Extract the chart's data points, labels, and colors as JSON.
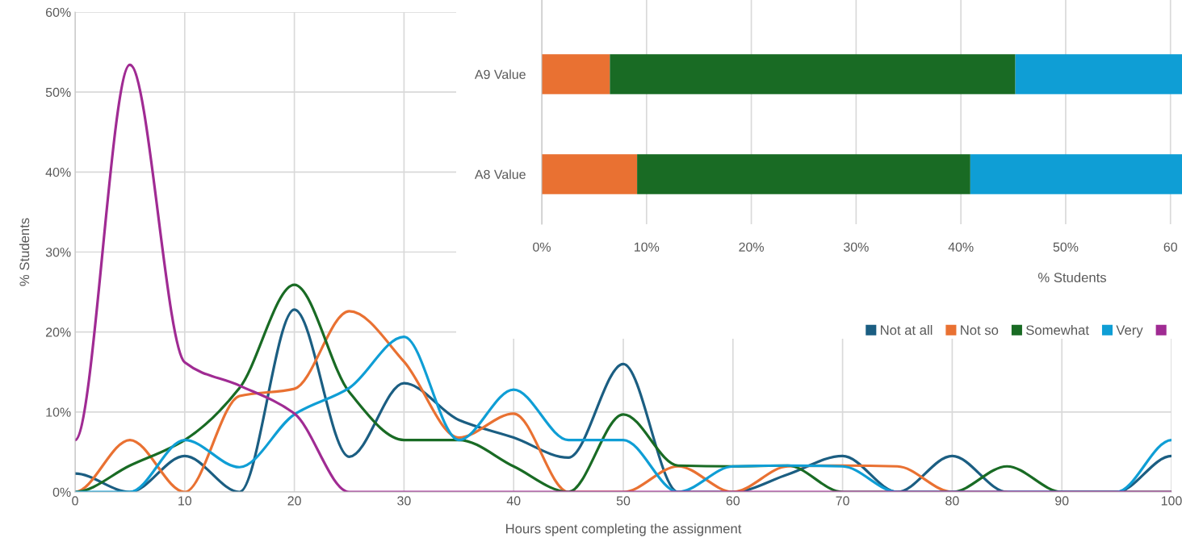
{
  "chart_data": [
    {
      "type": "line",
      "xlabel": "Hours spent completing the assignment",
      "ylabel": "% Students",
      "x": [
        0,
        5,
        10,
        15,
        20,
        25,
        30,
        35,
        40,
        45,
        50,
        55,
        60,
        65,
        70,
        75,
        80,
        85,
        90,
        95,
        100
      ],
      "series": [
        {
          "name": "Not at all",
          "color": "#1b5e82",
          "values": [
            2.3,
            0,
            4.5,
            0,
            22.8,
            4.4,
            13.6,
            9.0,
            6.8,
            4.3,
            16,
            0,
            0,
            2.2,
            4.5,
            0,
            4.5,
            0,
            0,
            0,
            4.5
          ]
        },
        {
          "name": "Not so",
          "color": "#e97132",
          "values": [
            0,
            6.5,
            0,
            12,
            12.9,
            22.6,
            16.3,
            6.8,
            9.8,
            0,
            0,
            3.2,
            0,
            3.2,
            3.3,
            3.2,
            0,
            0,
            null,
            null,
            null
          ]
        },
        {
          "name": "Somewhat",
          "color": "#196b24",
          "values": [
            0,
            3.3,
            6.5,
            13,
            25.9,
            12.5,
            6.5,
            6.5,
            3.2,
            0,
            9.7,
            3.3,
            3.2,
            3.3,
            0,
            0,
            0,
            3.2,
            0,
            0,
            0
          ]
        },
        {
          "name": "Very",
          "color": "#0f9ed5",
          "values": [
            0,
            0,
            6.5,
            3.1,
            9.7,
            13,
            19.4,
            6.5,
            12.8,
            6.5,
            6.5,
            0,
            3.2,
            3.3,
            3.2,
            0,
            0,
            0,
            0,
            0,
            6.5
          ]
        },
        {
          "color": "#a02b93",
          "values": [
            6.5,
            53.4,
            16.2,
            13.3,
            9.8,
            0,
            0,
            0,
            0,
            0,
            0,
            0,
            0,
            0,
            0,
            0,
            0,
            0,
            0,
            0,
            0
          ]
        }
      ],
      "xlim": [
        0,
        100
      ],
      "xticks": [
        0,
        10,
        20,
        30,
        40,
        50,
        60,
        70,
        80,
        90,
        100
      ],
      "ylim": [
        0,
        60
      ],
      "yticks": [
        {
          "value": 0,
          "label": "0%"
        },
        {
          "value": 10,
          "label": "10%"
        },
        {
          "value": 20,
          "label": "20%"
        },
        {
          "value": 30,
          "label": "30%"
        },
        {
          "value": 40,
          "label": "40%"
        },
        {
          "value": 50,
          "label": "50%"
        },
        {
          "value": 60,
          "label": "60%"
        }
      ],
      "grid": true,
      "legend": "right",
      "marker": "none",
      "line_style": "solid"
    },
    {
      "type": "bar",
      "orientation": "horizontal",
      "stacked": true,
      "xlabel": "% Students",
      "categories": [
        "A9 Value",
        "A8 Value"
      ],
      "series": [
        {
          "color": "#e97132",
          "values": [
            6.5,
            9.1
          ]
        },
        {
          "color": "#196b24",
          "values": [
            38.7,
            31.8
          ]
        },
        {
          "color": "#0f9ed5",
          "values": [
            15.9,
            20.2
          ]
        }
      ],
      "xlim": [
        0,
        61.1
      ],
      "xticks": [
        {
          "value": 0,
          "label": "0%"
        },
        {
          "value": 10,
          "label": "10%"
        },
        {
          "value": 20,
          "label": "20%"
        },
        {
          "value": 30,
          "label": "30%"
        },
        {
          "value": 40,
          "label": "40%"
        },
        {
          "value": 50,
          "label": "50%"
        },
        {
          "value": 60,
          "label": "60"
        }
      ],
      "grid": "x"
    }
  ]
}
